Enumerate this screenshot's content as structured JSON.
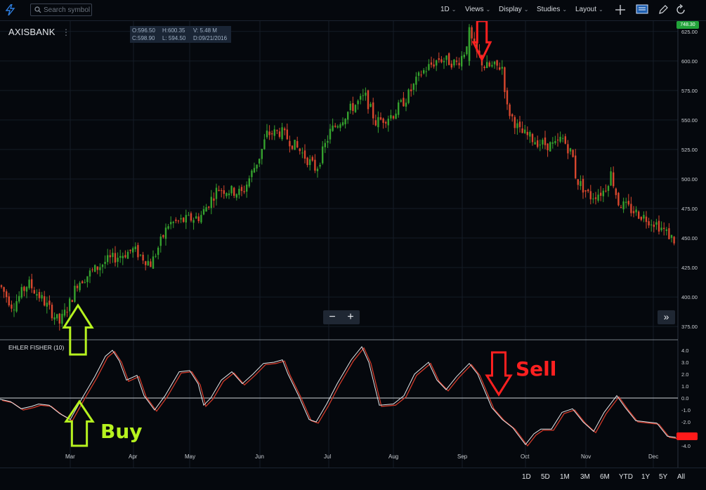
{
  "toolbar": {
    "search_placeholder": "Search symbol",
    "interval": "1D",
    "views": "Views",
    "display": "Display",
    "studies": "Studies",
    "layout": "Layout"
  },
  "symbol": "AXISBANK",
  "ohlc": {
    "open": "O:596.50",
    "high": "H:600.35",
    "volume": "V: 5.48 M",
    "close": "C:598.90",
    "low": "L: 594.50",
    "date": "D:09/21/2016"
  },
  "indicator": {
    "name": "EHLER FISHER (10)"
  },
  "last_price": "748.30",
  "price_axis": [
    "625.00",
    "600.00",
    "575.00",
    "550.00",
    "525.00",
    "500.00",
    "475.00",
    "450.00",
    "425.00",
    "400.00",
    "375.00"
  ],
  "indicator_axis": [
    "4.0",
    "3.0",
    "2.0",
    "1.0",
    "0.0",
    "-1.0",
    "-2.0",
    "-3.0",
    "-4.0"
  ],
  "time_axis": [
    "Mar",
    "Apr",
    "May",
    "Jun",
    "Jul",
    "Aug",
    "Sep",
    "Oct",
    "Nov",
    "Dec"
  ],
  "ranges": [
    "1D",
    "5D",
    "1M",
    "3M",
    "6M",
    "YTD",
    "1Y",
    "5Y",
    "All"
  ],
  "annotations": {
    "buy": "Buy",
    "sell": "Sell"
  },
  "colors": {
    "up": "#35a12e",
    "down": "#d8472e",
    "buy": "#b6f21f",
    "sell": "#ff2020",
    "accent": "#2f7fe0"
  },
  "chart_data": {
    "type": "candlestick",
    "symbol": "AXISBANK",
    "ylim": [
      365,
      632
    ],
    "approx_close_trend": [
      {
        "x": "Feb",
        "y": 405
      },
      {
        "x": "Mar",
        "y": 400
      },
      {
        "x": "Apr",
        "y": 440
      },
      {
        "x": "May",
        "y": 480
      },
      {
        "x": "Jun",
        "y": 520
      },
      {
        "x": "Jul",
        "y": 540
      },
      {
        "x": "Aug",
        "y": 560
      },
      {
        "x": "Sep",
        "y": 600
      },
      {
        "x": "Oct",
        "y": 548
      },
      {
        "x": "Nov",
        "y": 490
      },
      {
        "x": "Dec",
        "y": 455
      }
    ],
    "indicator": {
      "name": "EHLER FISHER (10)",
      "ylim": [
        -4,
        4
      ]
    }
  }
}
